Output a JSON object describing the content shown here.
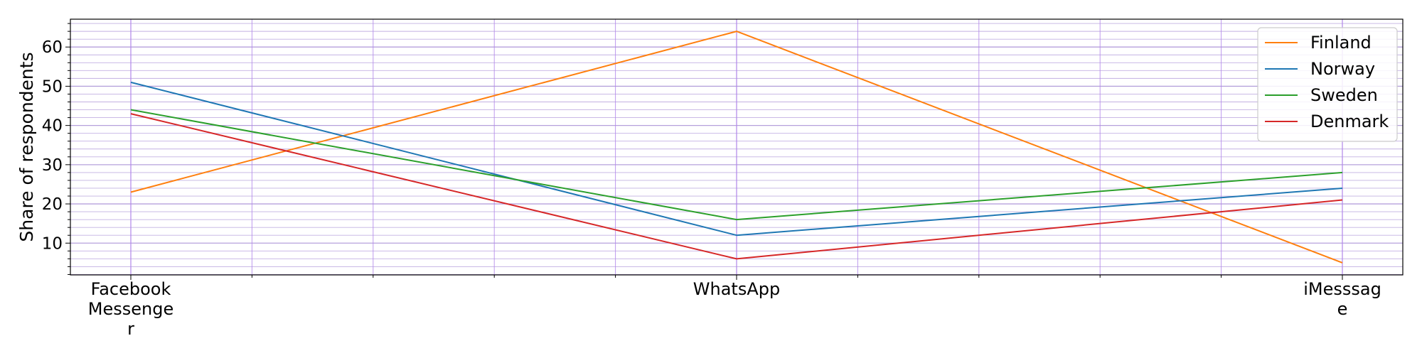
{
  "chart_data": {
    "type": "line",
    "title": "",
    "xlabel": "",
    "ylabel": "Share of respondents",
    "categories": [
      "Facebook Messenger",
      "WhatsApp",
      "iMesssage"
    ],
    "category_label_lines": [
      [
        "Facebook",
        "Messenge",
        "r"
      ],
      [
        "WhatsApp"
      ],
      [
        "iMesssag",
        "e"
      ]
    ],
    "ylim": [
      1.9,
      67.1
    ],
    "yticks": [
      10,
      20,
      30,
      40,
      50,
      60
    ],
    "series": [
      {
        "name": "Finland",
        "color": "#ff7f0e",
        "values": [
          23,
          64,
          5
        ]
      },
      {
        "name": "Norway",
        "color": "#1f77b4",
        "values": [
          51,
          12,
          24
        ]
      },
      {
        "name": "Sweden",
        "color": "#2ca02c",
        "values": [
          44,
          16,
          28
        ]
      },
      {
        "name": "Denmark",
        "color": "#d62728",
        "values": [
          43,
          6,
          21
        ]
      }
    ],
    "grid": {
      "major": true,
      "minor": true,
      "horizontal_color": "#b39ddb",
      "vertical_color": "#b388eb"
    },
    "legend_position": "top-right"
  }
}
